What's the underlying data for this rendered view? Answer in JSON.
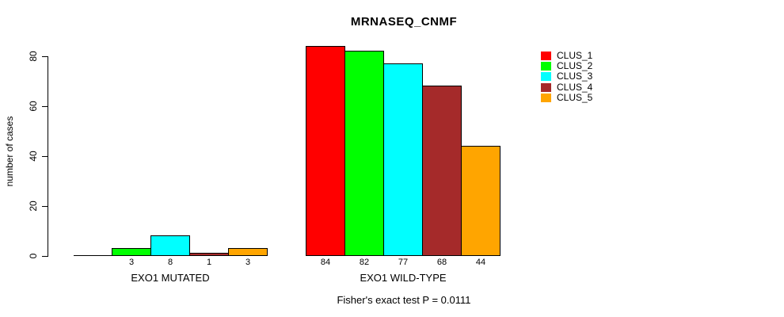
{
  "chart_data": {
    "type": "bar",
    "title": "MRNASEQ_CNMF",
    "ylabel": "number of cases",
    "ylim": [
      0,
      80
    ],
    "yticks": [
      0,
      20,
      40,
      60,
      80
    ],
    "grid": false,
    "legend_position": "right",
    "categories": [
      "EXO1 MUTATED",
      "EXO1 WILD-TYPE"
    ],
    "groups": [
      {
        "label": "EXO1 MUTATED",
        "values": [
          0,
          3,
          8,
          1,
          3
        ],
        "bar_labels": [
          "",
          "3",
          "8",
          "1",
          "3"
        ]
      },
      {
        "label": "EXO1 WILD-TYPE",
        "values": [
          84,
          82,
          77,
          68,
          44
        ],
        "bar_labels": [
          "84",
          "82",
          "77",
          "68",
          "44"
        ]
      }
    ],
    "series": [
      {
        "name": "CLUS_1",
        "color": "#FF0000",
        "values": [
          0,
          84
        ]
      },
      {
        "name": "CLUS_2",
        "color": "#00FF00",
        "values": [
          3,
          82
        ]
      },
      {
        "name": "CLUS_3",
        "color": "#00FFFF",
        "values": [
          8,
          77
        ]
      },
      {
        "name": "CLUS_4",
        "color": "#A52A2A",
        "values": [
          1,
          68
        ]
      },
      {
        "name": "CLUS_5",
        "color": "#FFA500",
        "values": [
          3,
          44
        ]
      }
    ],
    "legend": [
      {
        "label": "CLUS_1",
        "color": "#FF0000"
      },
      {
        "label": "CLUS_2",
        "color": "#00FF00"
      },
      {
        "label": "CLUS_3",
        "color": "#00FFFF"
      },
      {
        "label": "CLUS_4",
        "color": "#A52A2A"
      },
      {
        "label": "CLUS_5",
        "color": "#FFA500"
      }
    ],
    "footnote": "Fisher's exact test P = 0.0111"
  }
}
